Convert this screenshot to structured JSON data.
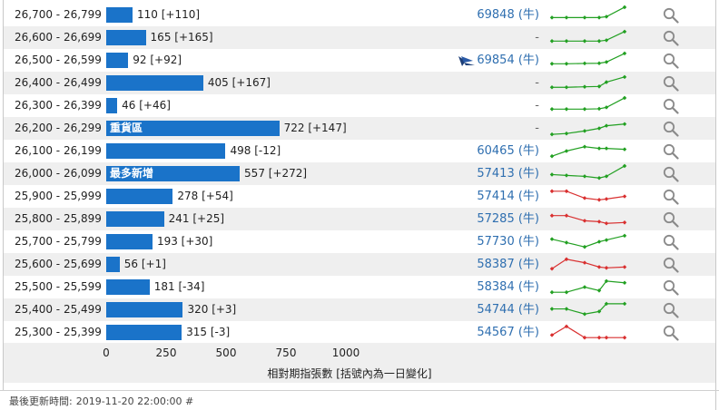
{
  "rows": [
    {
      "range": "26,700 - 26,799",
      "value": 110,
      "value_text": "110 [+110]",
      "bar_label": "",
      "code": "69848 (牛)",
      "is_dash": false,
      "ship": false,
      "trend": "up",
      "spark": [
        0.35,
        0.35,
        0.35,
        0.35,
        0.4,
        0.95
      ]
    },
    {
      "range": "26,600 - 26,699",
      "value": 165,
      "value_text": "165 [+165]",
      "bar_label": "",
      "code": "-",
      "is_dash": true,
      "ship": false,
      "trend": "up",
      "spark": [
        0.3,
        0.3,
        0.3,
        0.3,
        0.35,
        0.85
      ]
    },
    {
      "range": "26,500 - 26,599",
      "value": 92,
      "value_text": "92 [+92]",
      "bar_label": "",
      "code": "69854 (牛)",
      "is_dash": false,
      "ship": true,
      "trend": "up",
      "spark": [
        0.3,
        0.3,
        0.32,
        0.33,
        0.4,
        0.9
      ]
    },
    {
      "range": "26,400 - 26,499",
      "value": 405,
      "value_text": "405 [+167]",
      "bar_label": "",
      "code": "-",
      "is_dash": true,
      "ship": false,
      "trend": "up",
      "spark": [
        0.25,
        0.25,
        0.28,
        0.3,
        0.55,
        0.85
      ]
    },
    {
      "range": "26,300 - 26,399",
      "value": 46,
      "value_text": "46 [+46]",
      "bar_label": "",
      "code": "-",
      "is_dash": true,
      "ship": false,
      "trend": "up",
      "spark": [
        0.3,
        0.3,
        0.3,
        0.32,
        0.4,
        0.95
      ]
    },
    {
      "range": "26,200 - 26,299",
      "value": 722,
      "value_text": "722 [+147]",
      "bar_label": "重貨區",
      "code": "-",
      "is_dash": true,
      "ship": false,
      "trend": "up",
      "spark": [
        0.15,
        0.2,
        0.35,
        0.5,
        0.65,
        0.75
      ]
    },
    {
      "range": "26,100 - 26,199",
      "value": 498,
      "value_text": "498 [-12]",
      "bar_label": "",
      "code": "60465 (牛)",
      "is_dash": false,
      "ship": false,
      "trend": "up",
      "spark": [
        0.2,
        0.5,
        0.75,
        0.65,
        0.65,
        0.6
      ]
    },
    {
      "range": "26,000 - 26,099",
      "value": 557,
      "value_text": "557 [+272]",
      "bar_label": "最多新增",
      "code": "57413 (牛)",
      "is_dash": false,
      "ship": false,
      "trend": "up",
      "spark": [
        0.45,
        0.4,
        0.35,
        0.25,
        0.35,
        0.95
      ]
    },
    {
      "range": "25,900 - 25,999",
      "value": 278,
      "value_text": "278 [+54]",
      "bar_label": "",
      "code": "57414 (牛)",
      "is_dash": false,
      "ship": false,
      "trend": "down",
      "spark": [
        0.8,
        0.8,
        0.4,
        0.3,
        0.35,
        0.5
      ]
    },
    {
      "range": "25,800 - 25,899",
      "value": 241,
      "value_text": "241 [+25]",
      "bar_label": "",
      "code": "57285 (牛)",
      "is_dash": false,
      "ship": false,
      "trend": "down",
      "spark": [
        0.7,
        0.7,
        0.4,
        0.35,
        0.25,
        0.3
      ]
    },
    {
      "range": "25,700 - 25,799",
      "value": 193,
      "value_text": "193 [+30]",
      "bar_label": "",
      "code": "57730 (牛)",
      "is_dash": false,
      "ship": false,
      "trend": "up",
      "spark": [
        0.65,
        0.45,
        0.2,
        0.5,
        0.6,
        0.85
      ]
    },
    {
      "range": "25,600 - 25,699",
      "value": 56,
      "value_text": "56 [+1]",
      "bar_label": "",
      "code": "58387 (牛)",
      "is_dash": false,
      "ship": false,
      "trend": "down",
      "spark": [
        0.25,
        0.8,
        0.6,
        0.35,
        0.3,
        0.35
      ]
    },
    {
      "range": "25,500 - 25,599",
      "value": 181,
      "value_text": "181 [-34]",
      "bar_label": "",
      "code": "58384 (牛)",
      "is_dash": false,
      "ship": false,
      "trend": "up",
      "spark": [
        0.2,
        0.2,
        0.5,
        0.3,
        0.85,
        0.75
      ]
    },
    {
      "range": "25,400 - 25,499",
      "value": 320,
      "value_text": "320 [+3]",
      "bar_label": "",
      "code": "54744 (牛)",
      "is_dash": false,
      "ship": false,
      "trend": "up",
      "spark": [
        0.55,
        0.55,
        0.25,
        0.4,
        0.85,
        0.85
      ]
    },
    {
      "range": "25,300 - 25,399",
      "value": 315,
      "value_text": "315 [-3]",
      "bar_label": "",
      "code": "54567 (牛)",
      "is_dash": false,
      "ship": false,
      "trend": "down",
      "spark": [
        0.35,
        0.85,
        0.2,
        0.2,
        0.2,
        0.2
      ]
    }
  ],
  "axis": {
    "ticks": [
      "0",
      "250",
      "500",
      "750",
      "1000"
    ],
    "max": 1000,
    "title": "相對期指張數 [括號內為一日變化]"
  },
  "footer": {
    "label": "最後更新時間:",
    "timestamp": "2019-11-20 22:00:00 #"
  },
  "colors": {
    "bar": "#1a73c9",
    "up": "#22a022",
    "down": "#d93030",
    "code": "#2f6fb0",
    "alt_row": "#efefef"
  },
  "icons": {
    "search": "magnifier-icon",
    "ship": "ship-icon"
  }
}
